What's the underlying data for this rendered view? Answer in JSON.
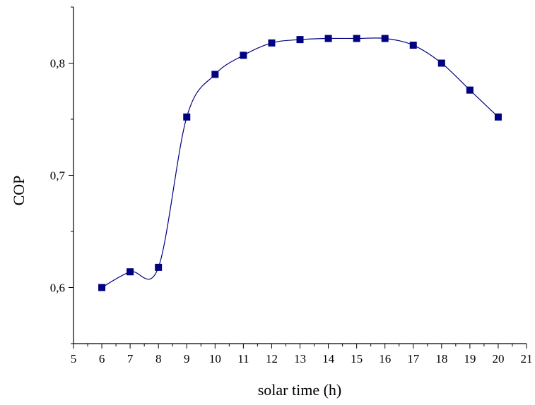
{
  "chart_data": {
    "type": "line",
    "xlabel": "solar time (h)",
    "ylabel": "COP",
    "xlim": [
      5,
      21
    ],
    "ylim": [
      0.55,
      0.85
    ],
    "x_ticks": [
      5,
      6,
      7,
      8,
      9,
      10,
      11,
      12,
      13,
      14,
      15,
      16,
      17,
      18,
      19,
      20,
      21
    ],
    "x_tick_labels": [
      "5",
      "6",
      "7",
      "8",
      "9",
      "10",
      "11",
      "12",
      "13",
      "14",
      "15",
      "16",
      "17",
      "18",
      "19",
      "20",
      "21"
    ],
    "y_ticks": [
      0.6,
      0.7,
      0.8
    ],
    "y_tick_labels": [
      "0,6",
      "0,7",
      "0,8"
    ],
    "grid": false,
    "legend": false,
    "smoothed_line": true,
    "series": [
      {
        "marker": "square",
        "color": "#000080",
        "x": [
          6,
          7,
          8,
          9,
          10,
          11,
          12,
          13,
          14,
          15,
          16,
          17,
          18,
          19,
          20
        ],
        "y": [
          0.6,
          0.614,
          0.618,
          0.752,
          0.79,
          0.807,
          0.818,
          0.821,
          0.822,
          0.822,
          0.822,
          0.816,
          0.8,
          0.776,
          0.752
        ]
      }
    ]
  }
}
